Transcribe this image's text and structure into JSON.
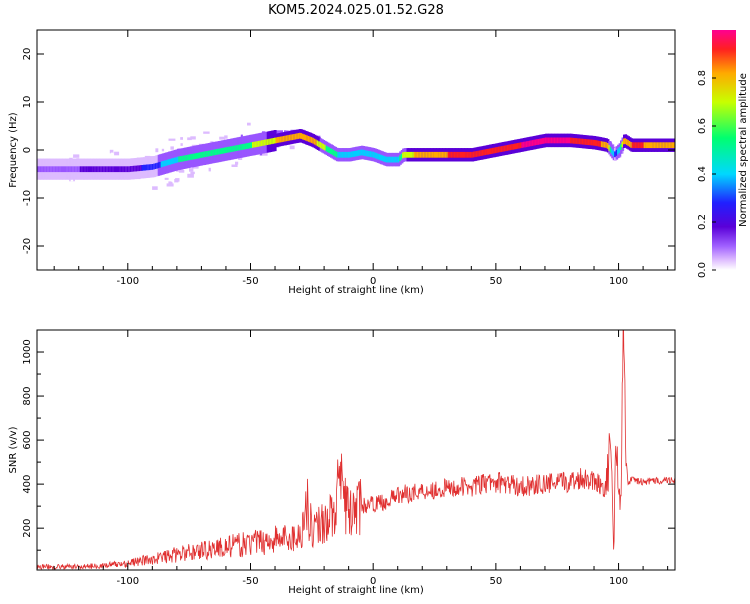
{
  "title": "KOM5.2024.025.01.52.G28",
  "colors": {
    "snr_line": "#e03030",
    "spectrum_palette": [
      "#ffffff",
      "#ddbbff",
      "#9955ff",
      "#5a00d8",
      "#2222ff",
      "#00d0ff",
      "#00ff88",
      "#ccff00",
      "#ffaa00",
      "#ff2020",
      "#ff0088"
    ]
  },
  "chart_data": [
    {
      "type": "heatmap",
      "xlabel": "Height of straight line (km)",
      "ylabel": "Frequency (Hz)",
      "xlim": [
        -137,
        123
      ],
      "ylim": [
        -25,
        25
      ],
      "xticks": [
        -100,
        -50,
        0,
        50,
        100
      ],
      "yticks": [
        -20,
        -10,
        0,
        10,
        20
      ],
      "colorbar": {
        "label": "Normalized spectral amplitude",
        "range": [
          0,
          1
        ],
        "ticks": [
          0.0,
          0.2,
          0.4,
          0.6,
          0.8
        ]
      },
      "ridge": {
        "x": [
          -137,
          -120,
          -100,
          -90,
          -80,
          -70,
          -60,
          -50,
          -45,
          -40,
          -35,
          -30,
          -25,
          -20,
          -15,
          -10,
          -5,
          0,
          5,
          10,
          12,
          20,
          30,
          40,
          50,
          60,
          70,
          80,
          90,
          95,
          98,
          100,
          102,
          105,
          110,
          123
        ],
        "y": [
          -4,
          -4,
          -4,
          -3.5,
          -2,
          -1,
          0,
          1,
          1.5,
          2,
          2.5,
          3,
          2,
          0.5,
          -1,
          -1,
          -0.5,
          -1,
          -2,
          -2,
          -1,
          -1,
          -1,
          -1,
          0,
          1,
          2,
          2,
          1.5,
          1,
          -1,
          0,
          2,
          1,
          1,
          1
        ],
        "amplitude": [
          0.2,
          0.25,
          0.3,
          0.4,
          0.55,
          0.6,
          0.6,
          0.65,
          0.7,
          0.75,
          0.8,
          0.85,
          0.8,
          0.65,
          0.55,
          0.5,
          0.5,
          0.55,
          0.5,
          0.55,
          0.7,
          0.8,
          0.85,
          0.9,
          0.9,
          0.95,
          0.95,
          0.95,
          0.9,
          0.8,
          0.4,
          0.5,
          0.8,
          0.85,
          0.85,
          0.8
        ]
      }
    },
    {
      "type": "line",
      "xlabel": "Height of straight line (km)",
      "ylabel": "SNR (v/v)",
      "xlim": [
        -137,
        123
      ],
      "ylim": [
        10,
        1100
      ],
      "xticks": [
        -100,
        -50,
        0,
        50,
        100
      ],
      "yticks": [
        200,
        400,
        600,
        800,
        1000
      ],
      "series": [
        {
          "x": [
            -137,
            -120,
            -110,
            -100,
            -90,
            -80,
            -70,
            -60,
            -50,
            -40,
            -30,
            -28,
            -27,
            -26,
            -25,
            -20,
            -15,
            -14,
            -10,
            -5,
            0,
            5,
            10,
            20,
            30,
            40,
            50,
            60,
            70,
            80,
            85,
            90,
            95,
            97,
            98,
            99,
            100,
            101,
            102,
            103,
            104,
            105,
            110,
            115,
            123
          ],
          "y": [
            25,
            25,
            30,
            40,
            60,
            80,
            100,
            115,
            130,
            150,
            160,
            250,
            330,
            240,
            200,
            230,
            280,
            420,
            260,
            300,
            310,
            320,
            350,
            370,
            380,
            390,
            410,
            390,
            400,
            410,
            430,
            420,
            380,
            600,
            80,
            620,
            300,
            420,
            1100,
            500,
            400,
            420,
            410,
            415,
            420
          ]
        }
      ]
    }
  ]
}
